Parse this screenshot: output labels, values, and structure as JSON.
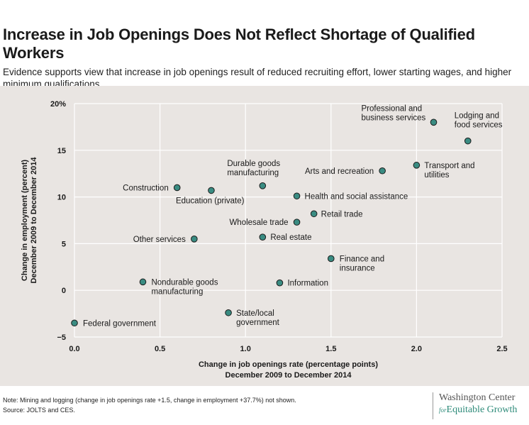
{
  "header": {
    "title": "Increase in Job Openings Does Not Reflect Shortage of Qualified Workers",
    "subtitle": "Evidence supports view that increase in job openings result of reduced recruiting effort, lower starting wages, and higher minimum qualifications."
  },
  "footer": {
    "note": "Note: Mining and logging (change in job openings rate +1.5, change in employment +37.7%) not shown.",
    "source": "Source: JOLTS and CES.",
    "logo_line1": "Washington Center",
    "logo_for": "for",
    "logo_line2": "Equitable Growth"
  },
  "colors": {
    "point_fill": "#3a8c82",
    "point_stroke": "#1a1a1a",
    "grid": "#ffffff",
    "background": "#e9e5e2",
    "logo_accent": "#2e8b7a"
  },
  "chart_data": {
    "type": "scatter",
    "xlabel": [
      "Change in job openings rate (percentage points)",
      "December 2009 to December 2014"
    ],
    "ylabel": [
      "Change in employment (percent)",
      "December 2009 to December 2014"
    ],
    "xlim": [
      0,
      2.5
    ],
    "ylim": [
      -5,
      20
    ],
    "xticks": [
      "0.0",
      "0.5",
      "1.0",
      "1.5",
      "2.0",
      "2.5"
    ],
    "yticks": [
      "20%",
      "15",
      "10",
      "5",
      "0",
      "−5"
    ],
    "grid": true,
    "points": [
      {
        "label": [
          "Federal government"
        ],
        "x": 0.0,
        "y": -3.5
      },
      {
        "label": [
          "Nondurable goods",
          "manufacturing"
        ],
        "x": 0.4,
        "y": 0.9
      },
      {
        "label": [
          "Construction"
        ],
        "x": 0.6,
        "y": 11.0
      },
      {
        "label": [
          "Other services"
        ],
        "x": 0.7,
        "y": 5.5
      },
      {
        "label": [
          "Education (private)"
        ],
        "x": 0.8,
        "y": 10.7
      },
      {
        "label": [
          "State/local",
          "government"
        ],
        "x": 0.9,
        "y": -2.4
      },
      {
        "label": [
          "Durable goods",
          "manufacturing"
        ],
        "x": 1.1,
        "y": 11.2
      },
      {
        "label": [
          "Real estate"
        ],
        "x": 1.1,
        "y": 5.7
      },
      {
        "label": [
          "Information"
        ],
        "x": 1.2,
        "y": 0.8
      },
      {
        "label": [
          "Health and social  assistance"
        ],
        "x": 1.3,
        "y": 10.1
      },
      {
        "label": [
          "Wholesale trade"
        ],
        "x": 1.3,
        "y": 7.3
      },
      {
        "label": [
          "Retail trade"
        ],
        "x": 1.4,
        "y": 8.2
      },
      {
        "label": [
          "Finance and",
          "insurance"
        ],
        "x": 1.5,
        "y": 3.4
      },
      {
        "label": [
          "Arts and recreation"
        ],
        "x": 1.8,
        "y": 12.8
      },
      {
        "label": [
          "Transport and",
          "utilities"
        ],
        "x": 2.0,
        "y": 13.4
      },
      {
        "label": [
          "Professional and",
          "business services"
        ],
        "x": 2.1,
        "y": 18.0
      },
      {
        "label": [
          "Lodging and",
          "food services"
        ],
        "x": 2.3,
        "y": 16.0
      }
    ]
  }
}
